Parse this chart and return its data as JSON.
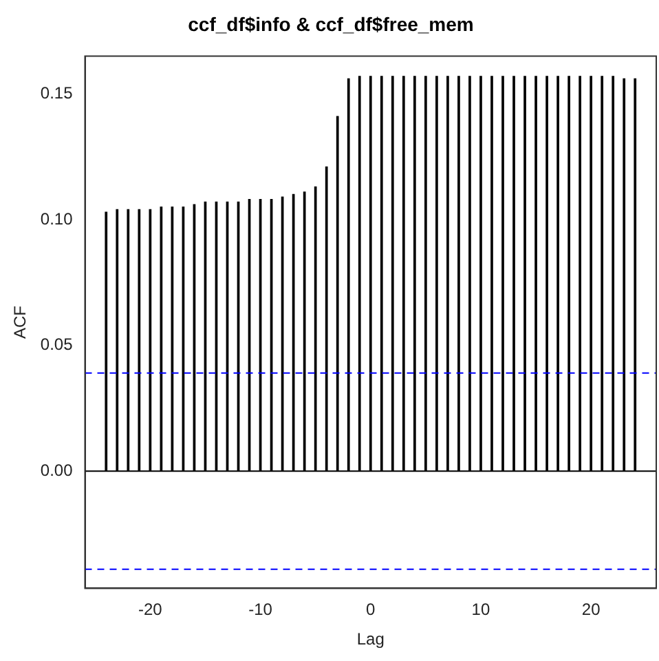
{
  "chart_data": {
    "type": "bar",
    "title": "ccf_df$info & ccf_df$free_mem",
    "xlabel": "Lag",
    "ylabel": "ACF",
    "x": [
      -24,
      -23,
      -22,
      -21,
      -20,
      -19,
      -18,
      -17,
      -16,
      -15,
      -14,
      -13,
      -12,
      -11,
      -10,
      -9,
      -8,
      -7,
      -6,
      -5,
      -4,
      -3,
      -2,
      -1,
      0,
      1,
      2,
      3,
      4,
      5,
      6,
      7,
      8,
      9,
      10,
      11,
      12,
      13,
      14,
      15,
      16,
      17,
      18,
      19,
      20,
      21,
      22,
      23,
      24
    ],
    "values": [
      0.103,
      0.104,
      0.104,
      0.104,
      0.104,
      0.105,
      0.105,
      0.105,
      0.106,
      0.107,
      0.107,
      0.107,
      0.107,
      0.108,
      0.108,
      0.108,
      0.109,
      0.11,
      0.111,
      0.113,
      0.121,
      0.141,
      0.156,
      0.157,
      0.157,
      0.157,
      0.157,
      0.157,
      0.157,
      0.157,
      0.157,
      0.157,
      0.157,
      0.157,
      0.157,
      0.157,
      0.157,
      0.157,
      0.157,
      0.157,
      0.157,
      0.157,
      0.157,
      0.157,
      0.157,
      0.157,
      0.157,
      0.156,
      0.156
    ],
    "color": "#000000",
    "xlim": [
      -25.92,
      25.92
    ],
    "xticks": [
      -20,
      -10,
      0,
      10,
      20
    ],
    "ylim": [
      -0.0466,
      0.165
    ],
    "yticks": [
      {
        "value": 0,
        "label": "0.00"
      },
      {
        "value": 0.05,
        "label": "0.05"
      },
      {
        "value": 0.1,
        "label": "0.10"
      },
      {
        "value": 0.15,
        "label": "0.15"
      }
    ],
    "ref_lines": [
      {
        "axis": "y",
        "value": 0,
        "color": "#000000",
        "line_style": "solid"
      },
      {
        "axis": "y",
        "value": 0.039,
        "color": "#0000ff",
        "line_style": "dashed"
      },
      {
        "axis": "y",
        "value": -0.039,
        "color": "#0000ff",
        "line_style": "dashed"
      }
    ],
    "grid": false,
    "legend": false
  }
}
